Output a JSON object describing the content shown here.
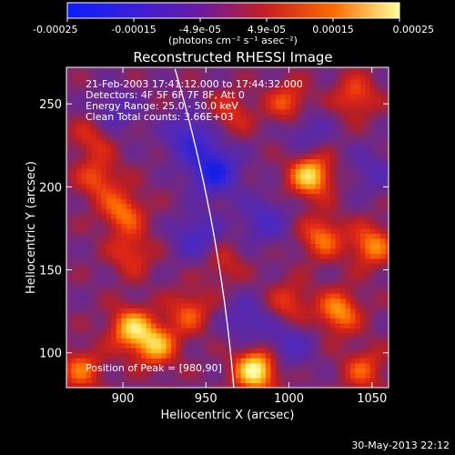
{
  "colorbar": {
    "labels": [
      "-0.00025",
      "-0.00015",
      "-4.9e-05",
      "4.9e-05",
      "0.00015",
      "0.00025"
    ],
    "units": "(photons cm⁻² s⁻¹ asec⁻²)",
    "colors": [
      "#0b1dff",
      "#3a1fd9",
      "#6a1aa2",
      "#c61f22",
      "#ff6a00",
      "#ffff9a"
    ]
  },
  "chart_data": {
    "type": "heatmap",
    "title": "Reconstructed RHESSI Image",
    "xlabel": "Heliocentric X (arcsec)",
    "ylabel": "Heliocentric Y (arcsec)",
    "xlim": [
      866,
      1060
    ],
    "ylim": [
      79,
      272
    ],
    "xticks": [
      900,
      950,
      1000,
      1050
    ],
    "yticks": [
      100,
      150,
      200,
      250
    ],
    "annotations": [
      "21-Feb-2003 17:41:12.000 to 17:44:32.000",
      "Detectors: 4F 5F 6F 7F 8F, Att 0",
      "Energy Range: 25.0 - 50.0 keV",
      "Clean     Total counts: 3.66E+03"
    ],
    "peak_label": "Position of Peak = [980,90]",
    "peak": [
      980,
      90
    ],
    "limb_arcsec": 970,
    "hotspots": [
      {
        "x": 980,
        "y": 90,
        "v": 1.0
      },
      {
        "x": 1013,
        "y": 207,
        "v": 0.85
      },
      {
        "x": 1050,
        "y": 165,
        "v": 0.6
      },
      {
        "x": 1040,
        "y": 255,
        "v": 0.45
      },
      {
        "x": 1000,
        "y": 250,
        "v": 0.5
      },
      {
        "x": 1020,
        "y": 170,
        "v": 0.55
      },
      {
        "x": 1030,
        "y": 125,
        "v": 0.65
      },
      {
        "x": 1045,
        "y": 90,
        "v": 0.45
      },
      {
        "x": 1000,
        "y": 130,
        "v": 0.4
      },
      {
        "x": 960,
        "y": 155,
        "v": 0.3
      },
      {
        "x": 900,
        "y": 185,
        "v": 0.55
      },
      {
        "x": 885,
        "y": 205,
        "v": 0.45
      },
      {
        "x": 882,
        "y": 230,
        "v": 0.35
      },
      {
        "x": 905,
        "y": 115,
        "v": 0.75
      },
      {
        "x": 920,
        "y": 105,
        "v": 0.7
      },
      {
        "x": 875,
        "y": 90,
        "v": 0.5
      },
      {
        "x": 905,
        "y": 160,
        "v": 0.4
      },
      {
        "x": 940,
        "y": 125,
        "v": 0.45
      },
      {
        "x": 965,
        "y": 245,
        "v": 0.35
      }
    ],
    "coldspots": [
      {
        "x": 955,
        "y": 210,
        "v": 0.9
      },
      {
        "x": 940,
        "y": 230,
        "v": 0.6
      },
      {
        "x": 945,
        "y": 170,
        "v": 0.5
      },
      {
        "x": 985,
        "y": 180,
        "v": 0.45
      },
      {
        "x": 975,
        "y": 120,
        "v": 0.4
      },
      {
        "x": 1000,
        "y": 105,
        "v": 0.4
      },
      {
        "x": 1010,
        "y": 235,
        "v": 0.35
      },
      {
        "x": 895,
        "y": 245,
        "v": 0.35
      },
      {
        "x": 1050,
        "y": 210,
        "v": 0.3
      }
    ]
  },
  "footer_date": "30-May-2013 22:12"
}
